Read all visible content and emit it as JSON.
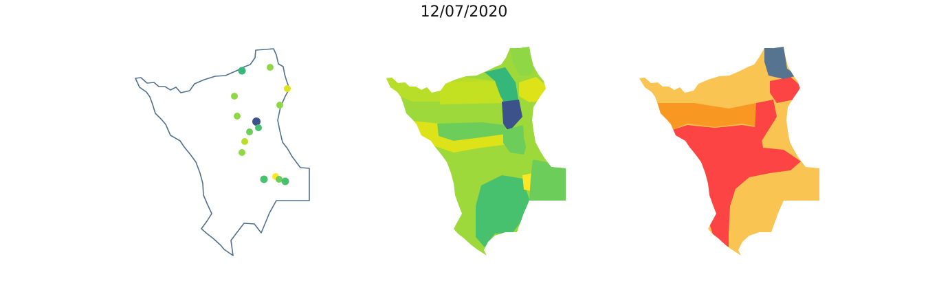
{
  "title": "12/07/2020",
  "colors": {
    "outline": "#50708f",
    "viridis_dark": "#3b528b",
    "viridis_teal": "#35b779",
    "viridis_green": "#48c16e",
    "viridis_lightgreen": "#6ccd5a",
    "viridis_lime": "#8fd744",
    "viridis_yellowgreen": "#b8de29",
    "viridis_yellow": "#dde318",
    "viridis_brightyellow": "#fde725",
    "risk_red": "#fc4444",
    "risk_orange": "#f89822",
    "risk_amber": "#f9c451",
    "risk_slate": "#56738f"
  }
}
